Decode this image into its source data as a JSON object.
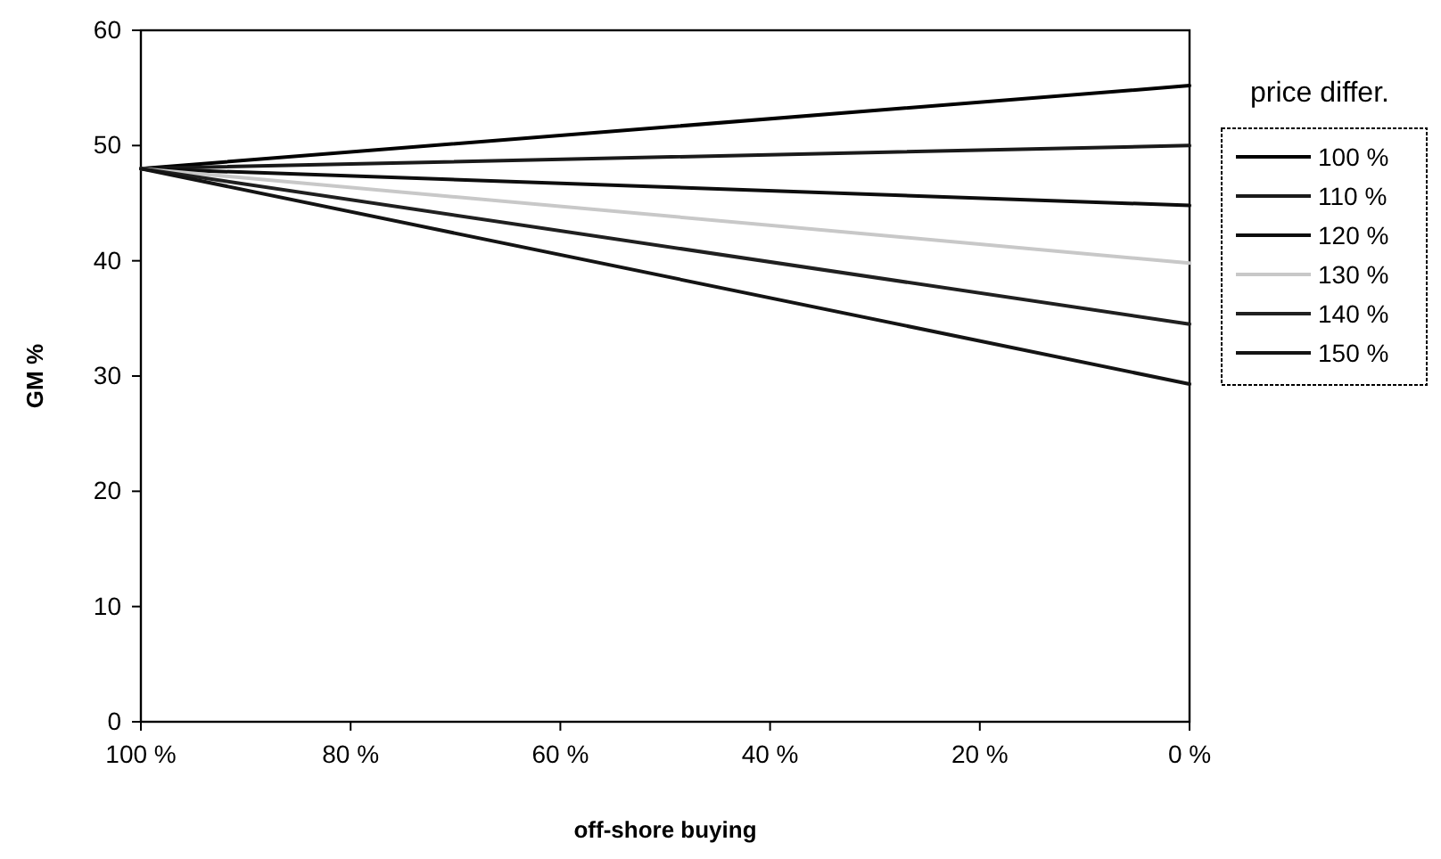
{
  "chart_data": {
    "type": "line",
    "xlabel": "off-shore buying",
    "ylabel": "GM %",
    "legend_title": "price differ.",
    "legend": "right",
    "grid": false,
    "marker": "none",
    "line_style": "solid",
    "x": [
      100,
      0
    ],
    "xlim": [
      100,
      0
    ],
    "ylim": [
      0,
      60
    ],
    "xticks": [
      {
        "value": 100,
        "label": "100 %"
      },
      {
        "value": 80,
        "label": "80 %"
      },
      {
        "value": 60,
        "label": "60 %"
      },
      {
        "value": 40,
        "label": "40 %"
      },
      {
        "value": 20,
        "label": "20 %"
      },
      {
        "value": 0,
        "label": "0 %"
      }
    ],
    "yticks": [
      0,
      10,
      20,
      30,
      40,
      50,
      60
    ],
    "series": [
      {
        "name": "100 %",
        "color": "#000000",
        "values": [
          48,
          55.2
        ]
      },
      {
        "name": "110 %",
        "color": "#1a1a1a",
        "values": [
          48,
          50
        ]
      },
      {
        "name": "120 %",
        "color": "#0d0d0d",
        "values": [
          48,
          44.8
        ]
      },
      {
        "name": "130 %",
        "color": "#c8c8c8",
        "values": [
          48,
          39.8
        ]
      },
      {
        "name": "140 %",
        "color": "#202020",
        "values": [
          48,
          34.5
        ]
      },
      {
        "name": "150 %",
        "color": "#141414",
        "values": [
          48,
          29.3
        ]
      }
    ]
  }
}
